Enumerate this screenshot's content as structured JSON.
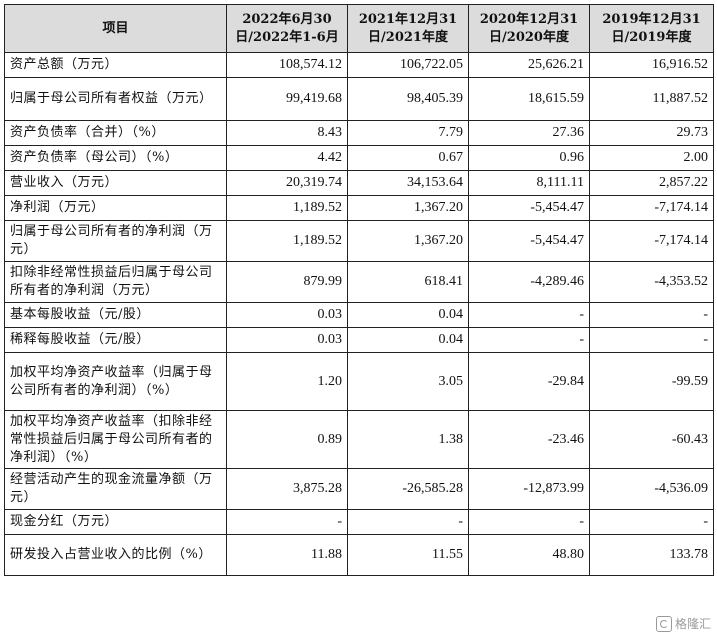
{
  "header": {
    "item": "项目",
    "col1": "2022年6月30日/2022年1-6月",
    "col2": "2021年12月31日/2021年度",
    "col3": "2020年12月31日/2020年度",
    "col4": "2019年12月31日/2019年度"
  },
  "rows": [
    {
      "label": "资产总额（万元）",
      "values": [
        "108,574.12",
        "106,722.05",
        "25,626.21",
        "16,916.52"
      ]
    },
    {
      "label": "归属于母公司所有者权益（万元）",
      "values": [
        "99,419.68",
        "98,405.39",
        "18,615.59",
        "11,887.52"
      ]
    },
    {
      "label": "资产负债率（合并）（%）",
      "values": [
        "8.43",
        "7.79",
        "27.36",
        "29.73"
      ]
    },
    {
      "label": "资产负债率（母公司）（%）",
      "values": [
        "4.42",
        "0.67",
        "0.96",
        "2.00"
      ]
    },
    {
      "label": "营业收入（万元）",
      "values": [
        "20,319.74",
        "34,153.64",
        "8,111.11",
        "2,857.22"
      ]
    },
    {
      "label": "净利润（万元）",
      "values": [
        "1,189.52",
        "1,367.20",
        "-5,454.47",
        "-7,174.14"
      ]
    },
    {
      "label": "归属于母公司所有者的净利润（万元）",
      "values": [
        "1,189.52",
        "1,367.20",
        "-5,454.47",
        "-7,174.14"
      ]
    },
    {
      "label": "扣除非经常性损益后归属于母公司所有者的净利润（万元）",
      "values": [
        "879.99",
        "618.41",
        "-4,289.46",
        "-4,353.52"
      ]
    },
    {
      "label": "基本每股收益（元/股）",
      "values": [
        "0.03",
        "0.04",
        "-",
        "-"
      ]
    },
    {
      "label": "稀释每股收益（元/股）",
      "values": [
        "0.03",
        "0.04",
        "-",
        "-"
      ]
    },
    {
      "label": "加权平均净资产收益率（归属于母公司所有者的净利润）（%）",
      "values": [
        "1.20",
        "3.05",
        "-29.84",
        "-99.59"
      ]
    },
    {
      "label": "加权平均净资产收益率（扣除非经常性损益后归属于母公司所有者的净利润）（%）",
      "values": [
        "0.89",
        "1.38",
        "-23.46",
        "-60.43"
      ]
    },
    {
      "label": "经营活动产生的现金流量净额（万元）",
      "values": [
        "3,875.28",
        "-26,585.28",
        "-12,873.99",
        "-4,536.09"
      ]
    },
    {
      "label": "现金分红（万元）",
      "values": [
        "-",
        "-",
        "-",
        "-"
      ]
    },
    {
      "label": "研发投入占营业收入的比例（%）",
      "values": [
        "11.88",
        "11.55",
        "48.80",
        "133.78"
      ]
    }
  ],
  "watermark": {
    "text": "格隆汇"
  }
}
